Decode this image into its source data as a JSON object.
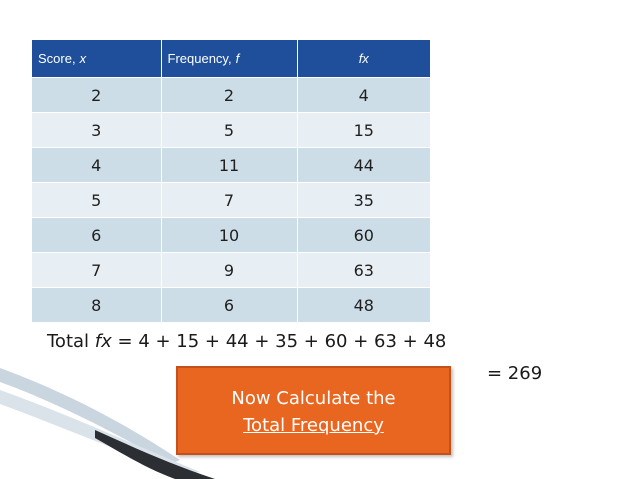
{
  "table": {
    "headers": {
      "score": "Score,",
      "score_var": "x",
      "frequency": "Frequency,",
      "frequency_var": "f",
      "fx": "fx"
    },
    "rows": [
      {
        "score": "2",
        "frequency": "2",
        "fx": "4"
      },
      {
        "score": "3",
        "frequency": "5",
        "fx": "15"
      },
      {
        "score": "4",
        "frequency": "11",
        "fx": "44"
      },
      {
        "score": "5",
        "frequency": "7",
        "fx": "35"
      },
      {
        "score": "6",
        "frequency": "10",
        "fx": "60"
      },
      {
        "score": "7",
        "frequency": "9",
        "fx": "63"
      },
      {
        "score": "8",
        "frequency": "6",
        "fx": "48"
      }
    ]
  },
  "total": {
    "prefix": "Total",
    "var": "fx",
    "expression": "= 4 + 15 + 44 + 35 + 60 + 63 + 48",
    "result": "= 269"
  },
  "callout": {
    "line1": "Now Calculate the",
    "line2": "Total Frequency"
  },
  "colors": {
    "header_bg": "#1f4e9a",
    "row_odd": "#cddde8",
    "row_even": "#e8eff4",
    "callout_bg": "#e8661f"
  }
}
